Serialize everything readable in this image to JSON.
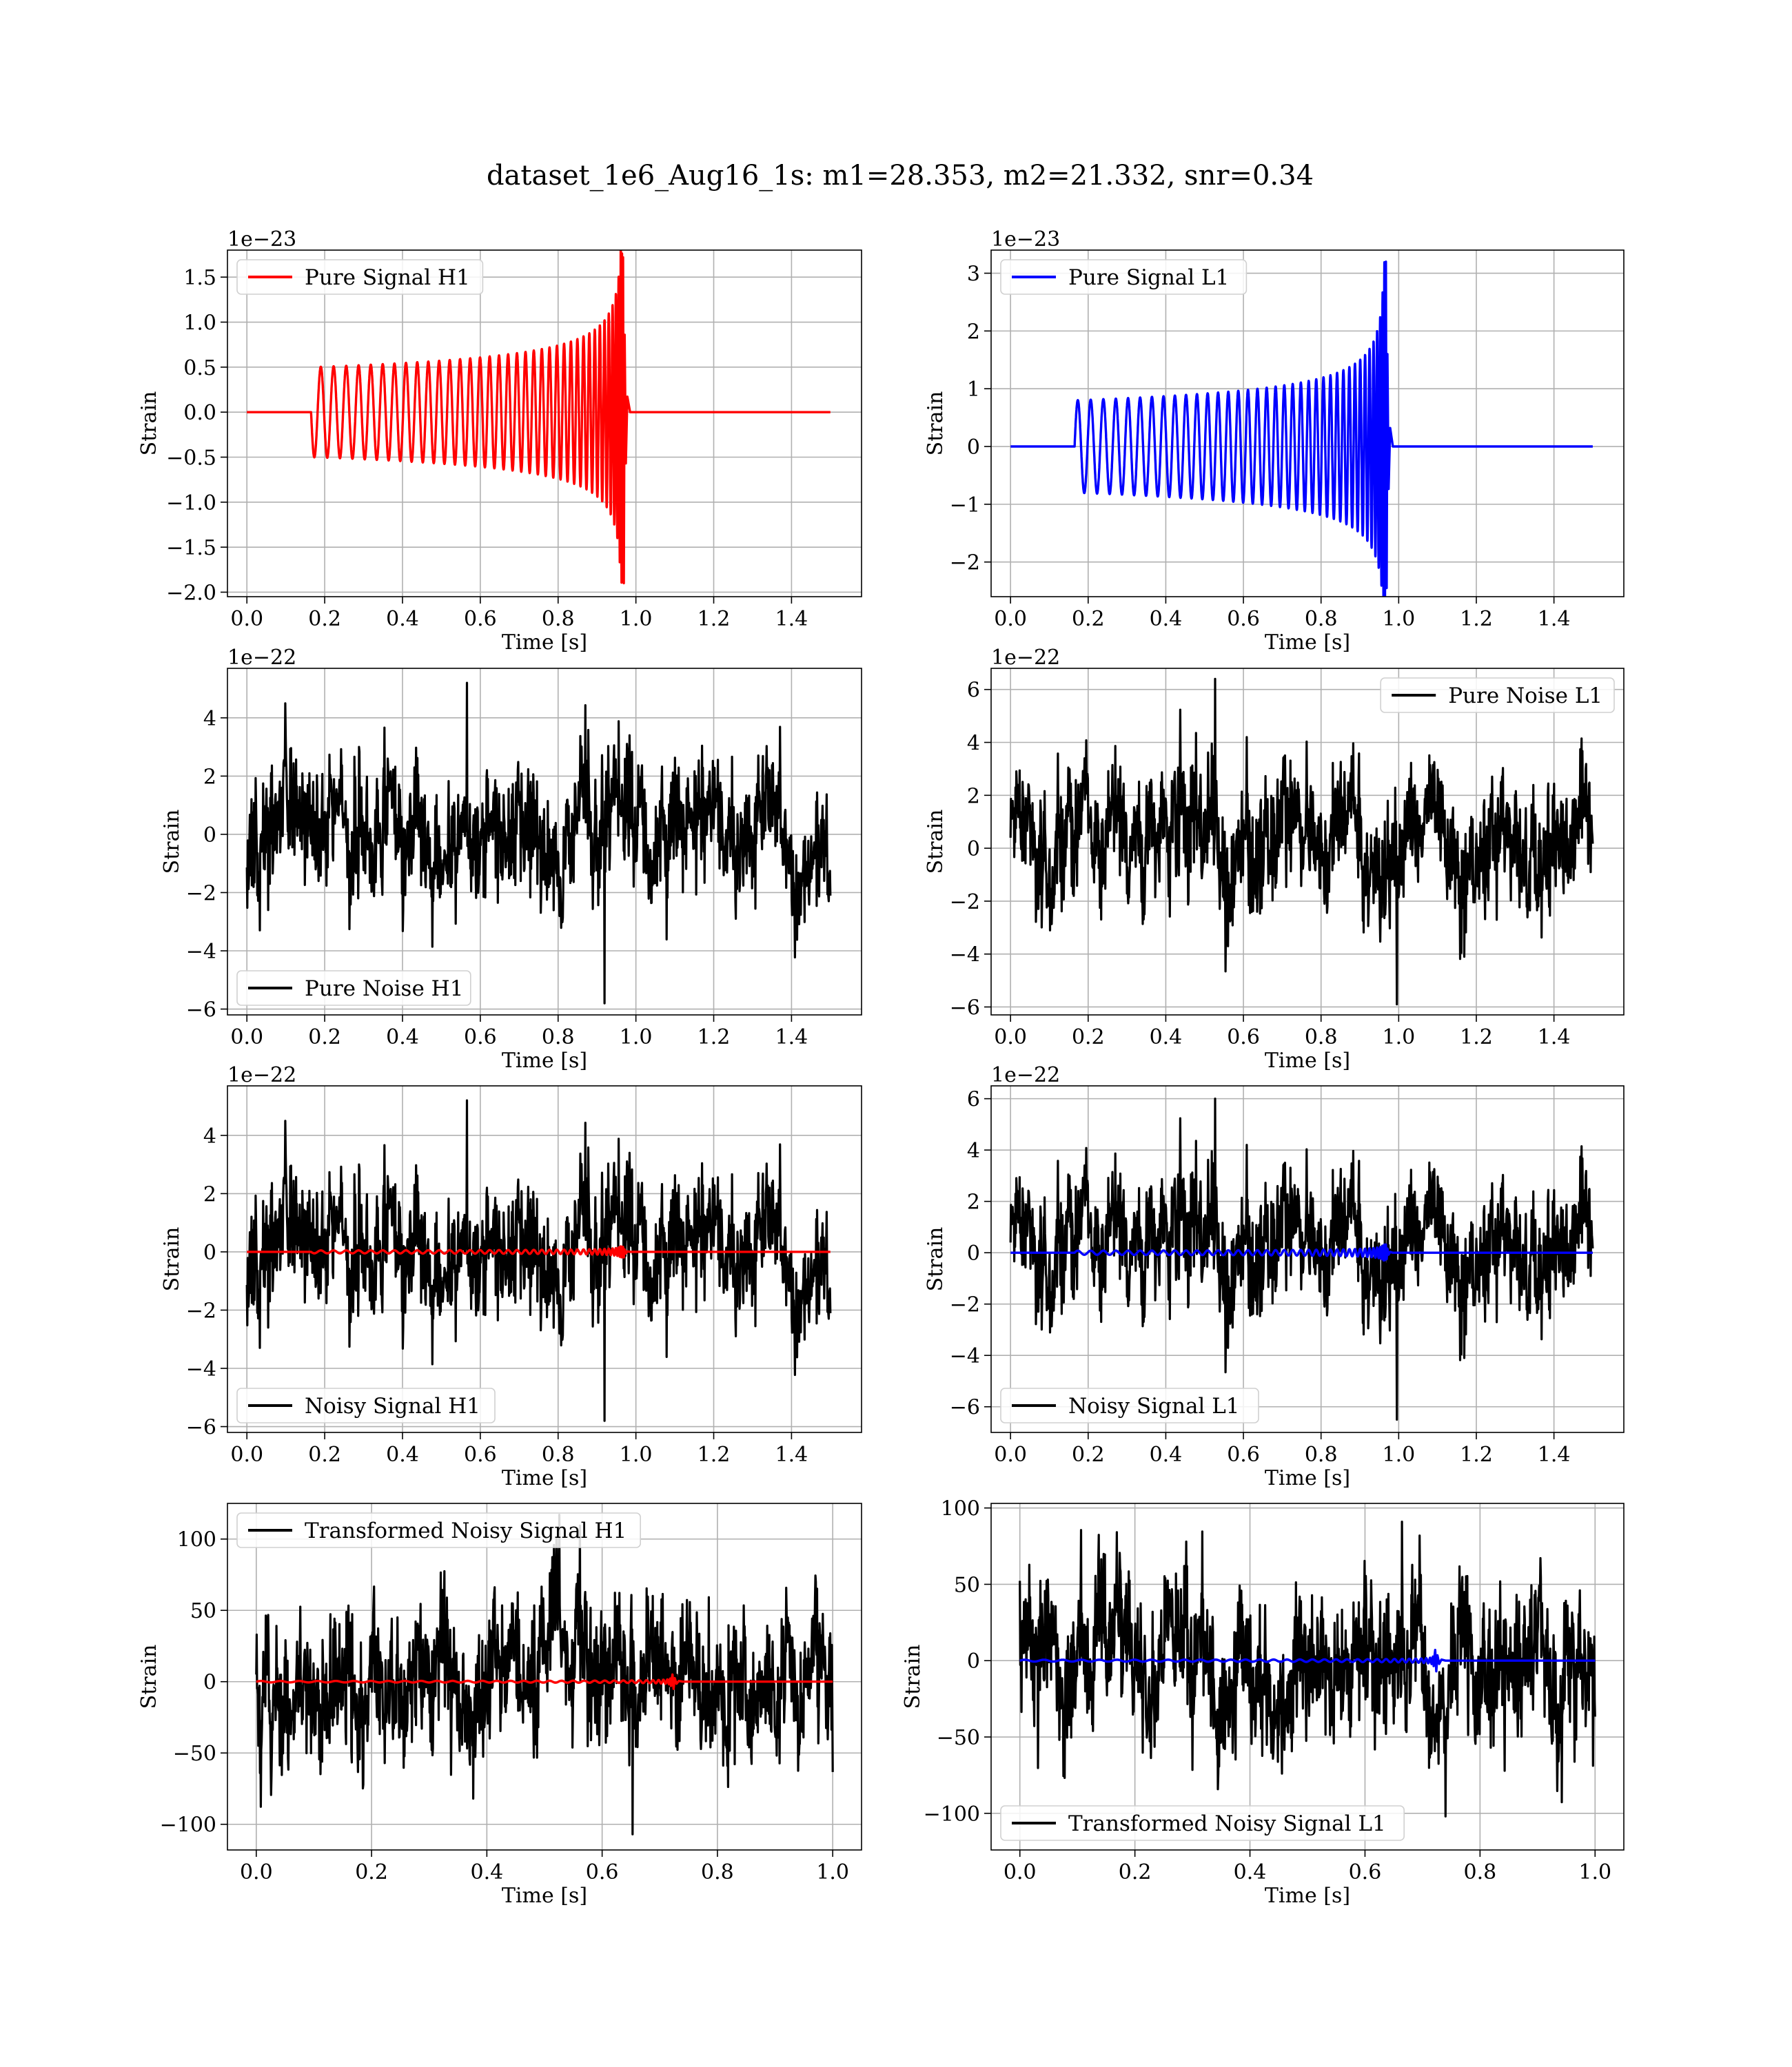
{
  "suptitle": "dataset_1e6_Aug16_1s: m1=28.353, m2=21.332, snr=0.34",
  "colors": {
    "h1_signal": "#ff0000",
    "l1_signal": "#0000ff",
    "noise": "#000000",
    "grid": "#b0b0b0"
  },
  "chart_data": [
    {
      "id": "pure-signal-h1",
      "type": "line",
      "xlabel": "Time [s]",
      "ylabel": "Strain",
      "offset_text": "1e−23",
      "xlim": [
        -0.05,
        1.58
      ],
      "ylim": [
        -2.05,
        1.8
      ],
      "xticks": [
        0.0,
        0.2,
        0.4,
        0.6,
        0.8,
        1.0,
        1.2,
        1.4
      ],
      "xtick_labels": [
        "0.0",
        "0.2",
        "0.4",
        "0.6",
        "0.8",
        "1.0",
        "1.2",
        "1.4"
      ],
      "yticks": [
        -2.0,
        -1.5,
        -1.0,
        -0.5,
        0.0,
        0.5,
        1.0,
        1.5
      ],
      "ytick_labels": [
        "−2.0",
        "−1.5",
        "−1.0",
        "−0.5",
        "0.0",
        "0.5",
        "1.0",
        "1.5"
      ],
      "grid": true,
      "legend_position": "upper-left",
      "series": [
        {
          "name": "Pure Signal H1",
          "color": "#ff0000",
          "kind": "chirp",
          "t_start": 0.165,
          "t_merge": 0.965,
          "t_end": 1.5,
          "x_max": 1.5,
          "amp_start": 0.5,
          "amp_peak": 1.72,
          "amp_trough": -1.9,
          "cycles": 38,
          "start_phase": "down",
          "legend": true
        }
      ]
    },
    {
      "id": "pure-signal-l1",
      "type": "line",
      "xlabel": "Time [s]",
      "ylabel": "Strain",
      "offset_text": "1e−23",
      "xlim": [
        -0.05,
        1.58
      ],
      "ylim": [
        -2.6,
        3.4
      ],
      "xticks": [
        0.0,
        0.2,
        0.4,
        0.6,
        0.8,
        1.0,
        1.2,
        1.4
      ],
      "xtick_labels": [
        "0.0",
        "0.2",
        "0.4",
        "0.6",
        "0.8",
        "1.0",
        "1.2",
        "1.4"
      ],
      "yticks": [
        -2,
        -1,
        0,
        1,
        2,
        3
      ],
      "ytick_labels": [
        "−2",
        "−1",
        "0",
        "1",
        "2",
        "3"
      ],
      "grid": true,
      "legend_position": "upper-left",
      "series": [
        {
          "name": "Pure Signal L1",
          "color": "#0000ff",
          "kind": "chirp",
          "t_start": 0.165,
          "t_merge": 0.965,
          "t_end": 1.5,
          "x_max": 1.5,
          "amp_start": 0.8,
          "amp_peak": 3.2,
          "amp_trough": -2.45,
          "cycles": 38,
          "start_phase": "up",
          "legend": true
        }
      ]
    },
    {
      "id": "pure-noise-h1",
      "type": "line",
      "xlabel": "Time [s]",
      "ylabel": "Strain",
      "offset_text": "1e−22",
      "xlim": [
        -0.05,
        1.58
      ],
      "ylim": [
        -6.2,
        5.7
      ],
      "xticks": [
        0.0,
        0.2,
        0.4,
        0.6,
        0.8,
        1.0,
        1.2,
        1.4
      ],
      "xtick_labels": [
        "0.0",
        "0.2",
        "0.4",
        "0.6",
        "0.8",
        "1.0",
        "1.2",
        "1.4"
      ],
      "yticks": [
        -6,
        -4,
        -2,
        0,
        2,
        4
      ],
      "ytick_labels": [
        "−6",
        "−4",
        "−2",
        "0",
        "2",
        "4"
      ],
      "grid": true,
      "legend_position": "lower-left",
      "series": [
        {
          "name": "Pure Noise H1",
          "color": "#000000",
          "kind": "noise",
          "x_max": 1.5,
          "sigma": 1.2,
          "peak_max": 5.2,
          "peak_min": -5.8,
          "seed": 11,
          "legend": true
        }
      ]
    },
    {
      "id": "pure-noise-l1",
      "type": "line",
      "xlabel": "Time [s]",
      "ylabel": "Strain",
      "offset_text": "1e−22",
      "xlim": [
        -0.05,
        1.58
      ],
      "ylim": [
        -6.3,
        6.8
      ],
      "xticks": [
        0.0,
        0.2,
        0.4,
        0.6,
        0.8,
        1.0,
        1.2,
        1.4
      ],
      "xtick_labels": [
        "0.0",
        "0.2",
        "0.4",
        "0.6",
        "0.8",
        "1.0",
        "1.2",
        "1.4"
      ],
      "yticks": [
        -6,
        -4,
        -2,
        0,
        2,
        4,
        6
      ],
      "ytick_labels": [
        "−6",
        "−4",
        "−2",
        "0",
        "2",
        "4",
        "6"
      ],
      "grid": true,
      "legend_position": "upper-right",
      "series": [
        {
          "name": "Pure Noise L1",
          "color": "#000000",
          "kind": "noise",
          "x_max": 1.5,
          "sigma": 1.3,
          "peak_max": 6.4,
          "peak_min": -5.9,
          "seed": 23,
          "legend": true
        }
      ]
    },
    {
      "id": "noisy-signal-h1",
      "type": "line",
      "xlabel": "Time [s]",
      "ylabel": "Strain",
      "offset_text": "1e−22",
      "xlim": [
        -0.05,
        1.58
      ],
      "ylim": [
        -6.2,
        5.7
      ],
      "xticks": [
        0.0,
        0.2,
        0.4,
        0.6,
        0.8,
        1.0,
        1.2,
        1.4
      ],
      "xtick_labels": [
        "0.0",
        "0.2",
        "0.4",
        "0.6",
        "0.8",
        "1.0",
        "1.2",
        "1.4"
      ],
      "yticks": [
        -6,
        -4,
        -2,
        0,
        2,
        4
      ],
      "ytick_labels": [
        "−6",
        "−4",
        "−2",
        "0",
        "2",
        "4"
      ],
      "grid": true,
      "legend_position": "lower-left",
      "series": [
        {
          "name": "Noisy Signal H1",
          "color": "#000000",
          "kind": "noise",
          "x_max": 1.5,
          "sigma": 1.2,
          "peak_max": 5.2,
          "peak_min": -5.8,
          "seed": 11,
          "legend": true
        },
        {
          "name": "",
          "color": "#ff0000",
          "kind": "chirp",
          "t_start": 0.165,
          "t_merge": 0.965,
          "t_end": 1.5,
          "x_max": 1.5,
          "amp_start": 0.05,
          "amp_peak": 0.17,
          "amp_trough": -0.19,
          "cycles": 38,
          "start_phase": "down",
          "legend": false
        }
      ]
    },
    {
      "id": "noisy-signal-l1",
      "type": "line",
      "xlabel": "Time [s]",
      "ylabel": "Strain",
      "offset_text": "1e−22",
      "xlim": [
        -0.05,
        1.58
      ],
      "ylim": [
        -7.0,
        6.5
      ],
      "xticks": [
        0.0,
        0.2,
        0.4,
        0.6,
        0.8,
        1.0,
        1.2,
        1.4
      ],
      "xtick_labels": [
        "0.0",
        "0.2",
        "0.4",
        "0.6",
        "0.8",
        "1.0",
        "1.2",
        "1.4"
      ],
      "yticks": [
        -6,
        -4,
        -2,
        0,
        2,
        4,
        6
      ],
      "ytick_labels": [
        "−6",
        "−4",
        "−2",
        "0",
        "2",
        "4",
        "6"
      ],
      "grid": true,
      "legend_position": "lower-left",
      "series": [
        {
          "name": "Noisy Signal L1",
          "color": "#000000",
          "kind": "noise",
          "x_max": 1.5,
          "sigma": 1.3,
          "peak_max": 6.0,
          "peak_min": -6.5,
          "seed": 23,
          "legend": true
        },
        {
          "name": "",
          "color": "#0000ff",
          "kind": "chirp",
          "t_start": 0.165,
          "t_merge": 0.965,
          "t_end": 1.5,
          "x_max": 1.5,
          "amp_start": 0.08,
          "amp_peak": 0.32,
          "amp_trough": -0.25,
          "cycles": 38,
          "start_phase": "up",
          "legend": false
        }
      ]
    },
    {
      "id": "transformed-noisy-signal-h1",
      "type": "line",
      "xlabel": "Time [s]",
      "ylabel": "Strain",
      "offset_text": "",
      "xlim": [
        -0.05,
        1.05
      ],
      "ylim": [
        -118,
        125
      ],
      "xticks": [
        0.0,
        0.2,
        0.4,
        0.6,
        0.8,
        1.0
      ],
      "xtick_labels": [
        "0.0",
        "0.2",
        "0.4",
        "0.6",
        "0.8",
        "1.0"
      ],
      "yticks": [
        -100,
        -50,
        0,
        50,
        100
      ],
      "ytick_labels": [
        "−100",
        "−50",
        "0",
        "50",
        "100"
      ],
      "grid": true,
      "legend_position": "upper-left",
      "series": [
        {
          "name": "Transformed Noisy Signal H1",
          "color": "#000000",
          "kind": "noise",
          "x_max": 1.0,
          "sigma": 27,
          "peak_max": 117,
          "peak_min": -107,
          "seed": 37,
          "legend": true
        },
        {
          "name": "",
          "color": "#ff0000",
          "kind": "chirp",
          "t_start": 0.0,
          "t_merge": 0.72,
          "t_end": 1.0,
          "x_max": 1.0,
          "amp_start": 0.5,
          "amp_peak": 5.0,
          "amp_trough": -5.0,
          "cycles": 34,
          "start_phase": "up",
          "legend": false
        }
      ]
    },
    {
      "id": "transformed-noisy-signal-l1",
      "type": "line",
      "xlabel": "Time [s]",
      "ylabel": "Strain",
      "offset_text": "",
      "xlim": [
        -0.05,
        1.05
      ],
      "ylim": [
        -124,
        103
      ],
      "xticks": [
        0.0,
        0.2,
        0.4,
        0.6,
        0.8,
        1.0
      ],
      "xtick_labels": [
        "0.0",
        "0.2",
        "0.4",
        "0.6",
        "0.8",
        "1.0"
      ],
      "yticks": [
        -100,
        -50,
        0,
        50,
        100
      ],
      "ytick_labels": [
        "−100",
        "−50",
        "0",
        "50",
        "100"
      ],
      "grid": true,
      "legend_position": "lower-left",
      "series": [
        {
          "name": "Transformed Noisy Signal L1",
          "color": "#000000",
          "kind": "noise",
          "x_max": 1.0,
          "sigma": 26,
          "peak_max": 91,
          "peak_min": -102,
          "seed": 53,
          "legend": true
        },
        {
          "name": "",
          "color": "#0000ff",
          "kind": "chirp",
          "t_start": 0.0,
          "t_merge": 0.72,
          "t_end": 1.0,
          "x_max": 1.0,
          "amp_start": 0.6,
          "amp_peak": 7.0,
          "amp_trough": -7.0,
          "cycles": 34,
          "start_phase": "up",
          "legend": false
        }
      ]
    }
  ]
}
